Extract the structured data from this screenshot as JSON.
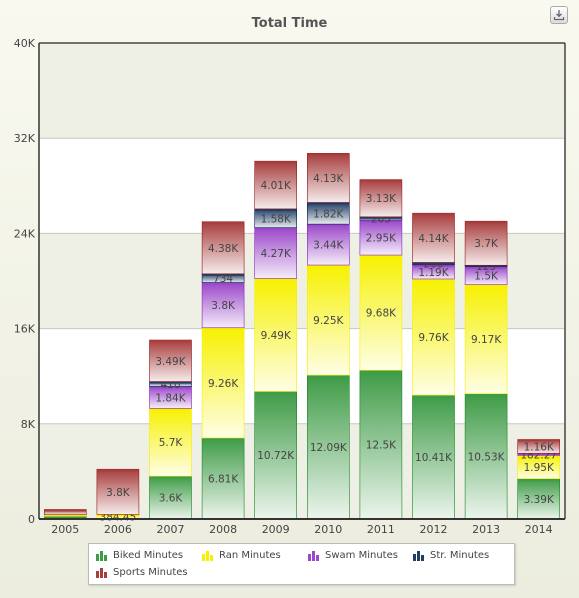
{
  "chart_data": {
    "type": "bar",
    "stacked": true,
    "title": "Total Time",
    "xlabel": "",
    "ylabel": "",
    "ylim": [
      0,
      40000
    ],
    "yticks": [
      0,
      8000,
      16000,
      24000,
      32000,
      40000
    ],
    "ytick_labels": [
      "0",
      "8K",
      "16K",
      "24K",
      "32K",
      "40K"
    ],
    "grid": true,
    "legend_position": "bottom",
    "categories": [
      "2005",
      "2006",
      "2007",
      "2008",
      "2009",
      "2010",
      "2011",
      "2012",
      "2013",
      "2014"
    ],
    "series": [
      {
        "name": "Biked Minutes",
        "color": "#3e9b46",
        "values": [
          240,
          0,
          3600,
          6810,
          10720,
          12090,
          12500,
          10410,
          10530,
          3390
        ],
        "labels": [
          "",
          "",
          "3.6K",
          "6.81K",
          "10.72K",
          "12.09K",
          "12.5K",
          "10.41K",
          "10.53K",
          "3.39K"
        ]
      },
      {
        "name": "Ran Minutes",
        "color": "#f7f100",
        "values": [
          120,
          384.45,
          5700,
          9260,
          9490,
          9250,
          9680,
          9760,
          9170,
          1950
        ],
        "labels": [
          "",
          "384.45",
          "5.7K",
          "9.26K",
          "9.49K",
          "9.25K",
          "9.68K",
          "9.76K",
          "9.17K",
          "1.95K"
        ]
      },
      {
        "name": "Swam Minutes",
        "color": "#9b47c9",
        "values": [
          0,
          0,
          1840,
          3800,
          4270,
          3440,
          2950,
          1190,
          1500,
          182.27
        ],
        "labels": [
          "",
          "",
          "1.84K",
          "3.8K",
          "4.27K",
          "3.44K",
          "2.95K",
          "1.19K",
          "1.5K",
          "182.27"
        ]
      },
      {
        "name": "Str. Minutes",
        "color": "#1f3e66",
        "values": [
          0,
          0,
          410,
          734,
          1580,
          1820,
          263,
          200,
          125,
          0
        ],
        "labels": [
          "",
          "",
          "410",
          "734",
          "1.58K",
          "1.82K",
          "263",
          "200",
          "125",
          ""
        ]
      },
      {
        "name": "Sports Minutes",
        "color": "#a73d3d",
        "values": [
          440,
          3800,
          3490,
          4380,
          4010,
          4130,
          3130,
          4140,
          3700,
          1160
        ],
        "labels": [
          "",
          "3.8K",
          "3.49K",
          "4.38K",
          "4.01K",
          "4.13K",
          "3.13K",
          "4.14K",
          "3.7K",
          "1.16K"
        ]
      }
    ]
  },
  "ui": {
    "export_icon": "download-icon",
    "legend_icon": "bar-series-icon"
  }
}
